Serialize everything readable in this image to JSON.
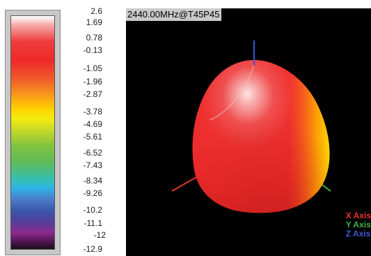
{
  "title": "2440.00MHz@T45P45",
  "scale_labels": [
    "2.6",
    "1.69",
    "0.78",
    "-0.13",
    "-1.05",
    "-1.96",
    "-2.87",
    "-3.78",
    "-4.69",
    "-5.61",
    "-6.52",
    "-7.43",
    "-8.34",
    "-9.26",
    "-10.2",
    "-11.1",
    "-12",
    "-12.9"
  ],
  "axes": [
    {
      "label": "X Axis",
      "color": "#e8322c"
    },
    {
      "label": "Y Axis",
      "color": "#39b54a"
    },
    {
      "label": "Z Axis",
      "color": "#3a59d6"
    }
  ]
}
